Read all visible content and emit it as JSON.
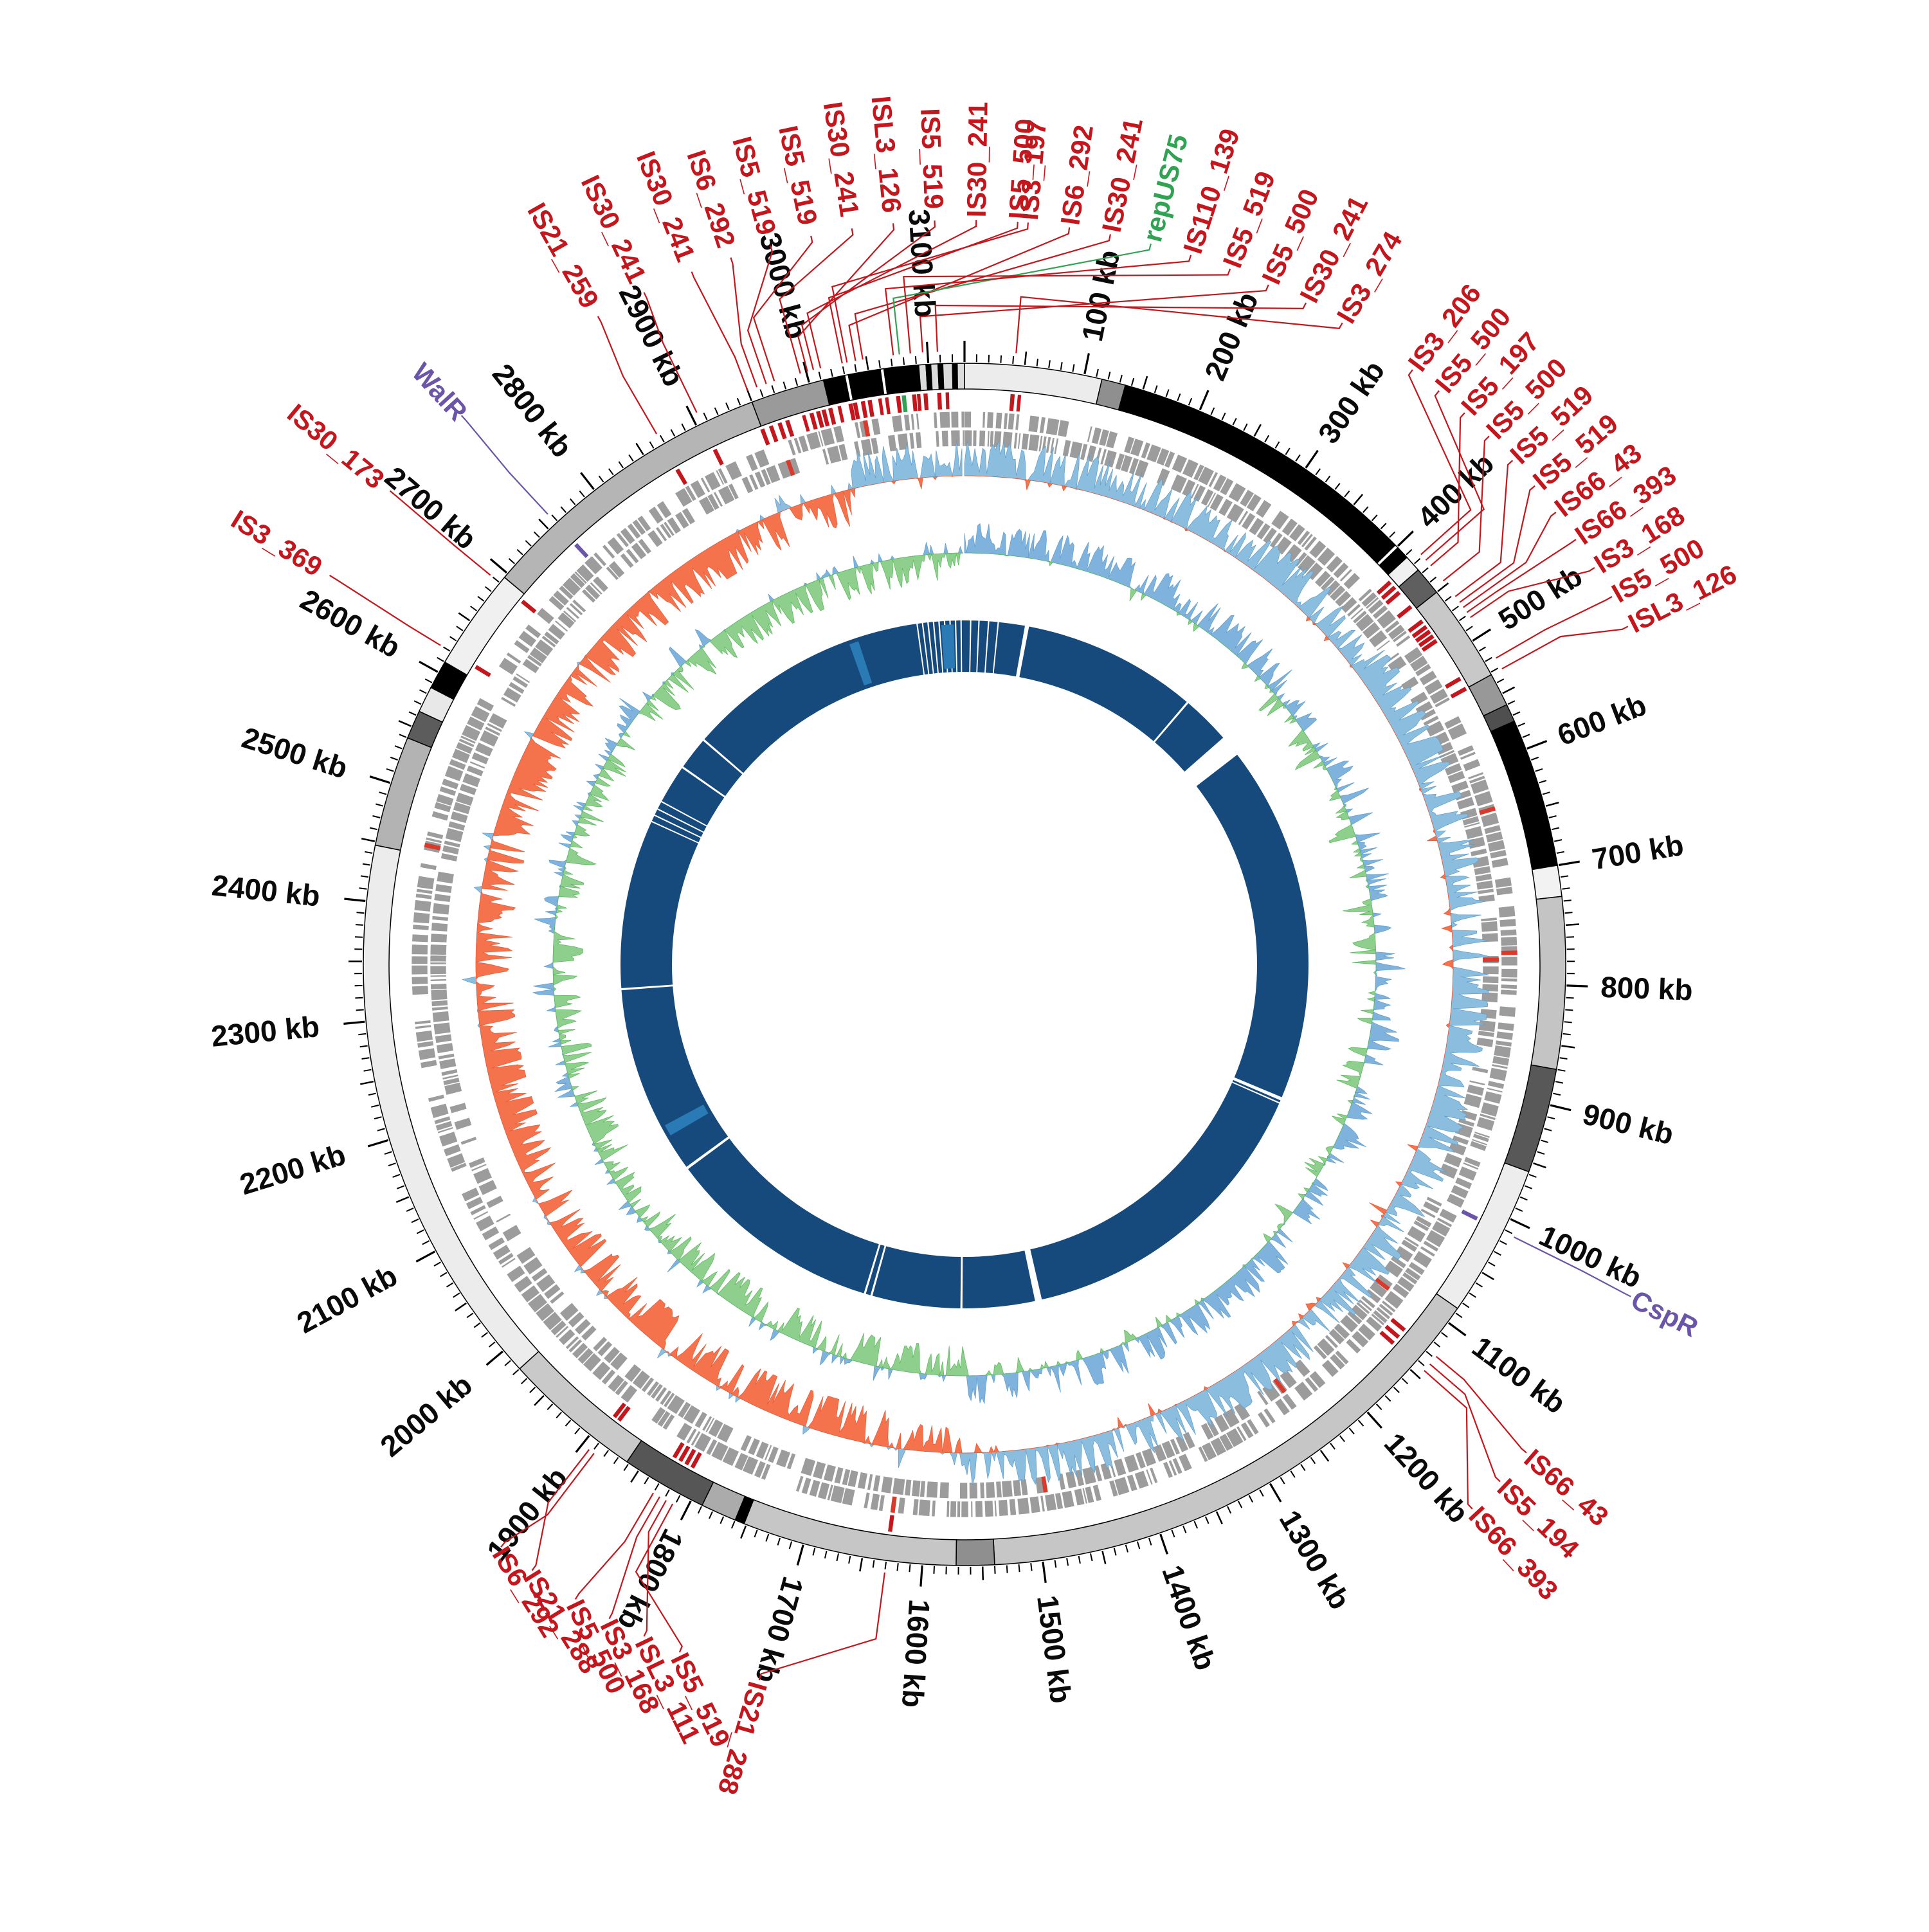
{
  "figure_title": "",
  "chart_data": {
    "type": "circular-genome-map",
    "genome_length_kb": 3130,
    "center": [
      1500,
      1500
    ],
    "scale": {
      "unit": "kb",
      "major_tick_kb": 100,
      "mid_tick_kb": 50,
      "minor_tick_kb": 10,
      "tick_labels": [
        "100 kb",
        "200 kb",
        "300 kb",
        "400 kb",
        "500 kb",
        "600 kb",
        "700 kb",
        "800 kb",
        "900 kb",
        "1000 kb",
        "1100 kb",
        "1200 kb",
        "1300 kb",
        "1400 kb",
        "1500 kb",
        "1600 kb",
        "1700 kb",
        "1800 kb",
        "1900 kb",
        "2000 kb",
        "2100 kb",
        "2200 kb",
        "2300 kb",
        "2400 kb",
        "2500 kb",
        "2600 kb",
        "2700 kb",
        "2800 kb",
        "2900 kb",
        "3000 kb",
        "3100 kb"
      ]
    },
    "colors": {
      "label_red": "#c4161d",
      "label_purple": "#6a55a8",
      "label_green": "#2fa352",
      "tick_black": "#000000",
      "gene_gray": "#9c9c9c",
      "gene_red": "#d93a2b",
      "gc_blue": "#8bbede",
      "gc_blue_edge": "#5e9dcd",
      "gc_orange": "#f4724c",
      "gc_orange_edge": "#e85934",
      "skew_blue": "#7fb3dd",
      "skew_green": "#8ecf8e",
      "skew_green_edge": "#57b757",
      "coverage_navy": "#174a7c",
      "coverage_light": "#2a7ab5"
    },
    "radii": {
      "contig_inner": 895,
      "contig_outer": 935,
      "is_tick_inner": 864,
      "is_tick_outer": 890,
      "gene_row1_inner": 835,
      "gene_row1_outer": 860,
      "gene_row2_inner": 806,
      "gene_row2_outer": 831,
      "gc_base": 760,
      "gc_amp": 56,
      "skew_base": 640,
      "skew_amp": 46,
      "coverage_inner": 455,
      "coverage_outer": 535,
      "tick_base": 937,
      "scale_label_r": 990,
      "leader_start": 954,
      "annotation_label_r": 1162
    },
    "contigs": [
      [
        0,
        115,
        "#ececec"
      ],
      [
        115,
        135,
        "#8f8f8f"
      ],
      [
        135,
        398,
        "#000000"
      ],
      [
        398,
        401,
        "#ffffff"
      ],
      [
        401,
        412,
        "#000000"
      ],
      [
        412,
        426,
        "#f0f0f0"
      ],
      [
        426,
        450,
        "#5f5f5f"
      ],
      [
        450,
        532,
        "#c8c8c8"
      ],
      [
        532,
        560,
        "#989898"
      ],
      [
        560,
        575,
        "#4f4f4f"
      ],
      [
        575,
        700,
        "#000000"
      ],
      [
        700,
        726,
        "#f2f2f2"
      ],
      [
        726,
        870,
        "#c4c4c4"
      ],
      [
        870,
        958,
        "#585858"
      ],
      [
        958,
        1086,
        "#ededed"
      ],
      [
        1086,
        1540,
        "#c6c6c6"
      ],
      [
        1540,
        1572,
        "#8f8f8f"
      ],
      [
        1572,
        1752,
        "#c6c6c6"
      ],
      [
        1752,
        1760,
        "#000000"
      ],
      [
        1760,
        1790,
        "#ababab"
      ],
      [
        1790,
        1862,
        "#565656"
      ],
      [
        1862,
        1980,
        "#c9c9c9"
      ],
      [
        1980,
        2447,
        "#ececec"
      ],
      [
        2447,
        2540,
        "#b3b3b3"
      ],
      [
        2540,
        2564,
        "#5c5c5c"
      ],
      [
        2564,
        2586,
        "#e8e8e8"
      ],
      [
        2586,
        2610,
        "#000000"
      ],
      [
        2610,
        2696,
        "#f0f0f0"
      ],
      [
        2696,
        2950,
        "#b5b5b5"
      ],
      [
        2950,
        3012,
        "#9a9a9a"
      ],
      [
        3012,
        3030,
        "#000000"
      ],
      [
        3030,
        3033,
        "#ffffff"
      ],
      [
        3033,
        3060,
        "#000000"
      ],
      [
        3060,
        3063,
        "#ffffff"
      ],
      [
        3063,
        3092,
        "#000000"
      ],
      [
        3092,
        3098,
        "#dcdcdc"
      ],
      [
        3098,
        3102,
        "#000000"
      ],
      [
        3102,
        3108,
        "#dcdcdc"
      ],
      [
        3108,
        3112,
        "#000000"
      ],
      [
        3112,
        3120,
        "#dcdcdc"
      ],
      [
        3120,
        3124,
        "#000000"
      ],
      [
        3124,
        3130,
        "#dcdcdc"
      ]
    ],
    "annotations": [
      {
        "text": "IS30_241",
        "pos": 2950,
        "la": 338.5
      },
      {
        "text": "IS6_292",
        "pos": 2958,
        "la": 341.7
      },
      {
        "text": "IS5_519",
        "pos": 2966,
        "la": 344.9
      },
      {
        "text": "IS5_519",
        "pos": 2973,
        "la": 348.1
      },
      {
        "text": "IS30_241",
        "pos": 2995,
        "la": 351.3
      },
      {
        "text": "ISL3_126",
        "pos": 3001,
        "la": 354.5
      },
      {
        "text": "IS5_519",
        "pos": 3006,
        "la": 357.7
      },
      {
        "text": "IS30_241",
        "pos": 3012,
        "la": 0.9
      },
      {
        "text": "IS5_500",
        "pos": 3030,
        "la": 4.1
      },
      {
        "text": "IS3_197",
        "pos": 3034,
        "la": 4.9
      },
      {
        "text": "IS6_292",
        "pos": 3041,
        "la": 8.1
      },
      {
        "text": "IS30_241",
        "pos": 3047,
        "la": 11.3
      },
      {
        "text": "repUS75",
        "pos": 3077,
        "la": 14.5,
        "color": "green"
      },
      {
        "text": "IS110_139",
        "pos": 3072,
        "la": 17.7
      },
      {
        "text": "IS5_519",
        "pos": 3086,
        "la": 20.9
      },
      {
        "text": "IS5_500",
        "pos": 3096,
        "la": 24.1
      },
      {
        "text": "IS30_241",
        "pos": 3108,
        "la": 27.3
      },
      {
        "text": "IS3_274",
        "pos": 42,
        "la": 30.5
      },
      {
        "text": "IS3_206",
        "pos": 418,
        "la": 37.0
      },
      {
        "text": "IS5_500",
        "pos": 424,
        "la": 39.6
      },
      {
        "text": "IS5_197",
        "pos": 430,
        "la": 42.2
      },
      {
        "text": "IS5_500",
        "pos": 446,
        "la": 44.8
      },
      {
        "text": "IS5_519",
        "pos": 462,
        "la": 47.4
      },
      {
        "text": "IS5_519",
        "pos": 468,
        "la": 50.0
      },
      {
        "text": "IS66_43",
        "pos": 473,
        "la": 52.6
      },
      {
        "text": "IS66_393",
        "pos": 478,
        "la": 55.2
      },
      {
        "text": "IS3_168",
        "pos": 483,
        "la": 57.8
      },
      {
        "text": "IS5_500",
        "pos": 522,
        "la": 60.4
      },
      {
        "text": "ISL3_126",
        "pos": 532,
        "la": 63.0
      },
      {
        "text": "CspR",
        "pos": 1012,
        "la": 116.5,
        "color": "purple"
      },
      {
        "text": "IS66_43",
        "pos": 1128,
        "la": 131.0
      },
      {
        "text": "IS5_194",
        "pos": 1136,
        "la": 134.0
      },
      {
        "text": "IS66_393",
        "pos": 1143,
        "la": 137.0
      },
      {
        "text": "IS21_288",
        "pos": 1630,
        "la": 196.0
      },
      {
        "text": "IS5_519",
        "pos": 1812,
        "la": 202.5,
        "rot": 64
      },
      {
        "text": "ISL3_111",
        "pos": 1818,
        "la": 205.5,
        "rot": 64
      },
      {
        "text": "IS3_168",
        "pos": 1824,
        "la": 208.5,
        "rot": 64
      },
      {
        "text": "IS5_500",
        "pos": 1830,
        "la": 211.5,
        "rot": 64
      },
      {
        "text": "IS21_288",
        "pos": 1893,
        "la": 215.5,
        "rot": 58
      },
      {
        "text": "IS6_292",
        "pos": 1888,
        "la": 218.5,
        "rot": 58
      },
      {
        "text": "IS3_369",
        "pos": 2620,
        "la": 301.5
      },
      {
        "text": "IS30_173",
        "pos": 2690,
        "la": 309.5
      },
      {
        "text": "WalR",
        "pos": 2758,
        "la": 317.5,
        "color": "purple"
      },
      {
        "text": "IS21_259",
        "pos": 2868,
        "la": 330.5
      },
      {
        "text": "IS30_241",
        "pos": 2905,
        "la": 334.5
      }
    ],
    "extra_is_ticks_kb": [
      2988,
      3020,
      3056,
      3062,
      3090,
      3115,
      48
    ],
    "gene_track": {
      "rows": 2,
      "seeds": [
        11,
        22
      ],
      "fill_probability": 0.82,
      "red_genes": [
        {
          "pos": 640,
          "row": 0
        },
        {
          "pos": 772,
          "row": 0
        },
        {
          "pos": 778,
          "row": 1
        },
        {
          "pos": 1108,
          "row": 1
        },
        {
          "pos": 1245,
          "row": 1
        },
        {
          "pos": 1489,
          "row": 1
        },
        {
          "pos": 1630,
          "row": 0
        },
        {
          "pos": 2456,
          "row": 0
        },
        {
          "pos": 2962,
          "row": 1
        },
        {
          "pos": 3040,
          "row": 0
        }
      ]
    },
    "gc_content": {
      "seed": 33,
      "sample_step_kb": 2.5,
      "bias_regions": [
        [
          0,
          1560,
          0.5
        ],
        [
          1560,
          1650,
          -0.15
        ],
        [
          1650,
          2930,
          -0.62
        ],
        [
          2930,
          3015,
          -0.25
        ],
        [
          3015,
          3130,
          0.45
        ]
      ],
      "positive_color_meaning": "above-average GC (blue, outward)",
      "negative_color_meaning": "below-average GC (orange, inward)"
    },
    "gc_skew": {
      "seed": 44,
      "sample_step_kb": 2.5,
      "bias_regions": [
        [
          0,
          420,
          0.45
        ],
        [
          420,
          1120,
          0.12
        ],
        [
          1120,
          1560,
          0.35
        ],
        [
          1560,
          2250,
          -0.35
        ],
        [
          2250,
          2800,
          -0.15
        ],
        [
          2800,
          3130,
          -0.4
        ]
      ],
      "positive_color_meaning": "positive skew (blue, outward)",
      "negative_color_meaning": "negative skew (green, inward)"
    },
    "coverage_ring": {
      "gaps_kb": [
        [
          8,
          10
        ],
        [
          20,
          22
        ],
        [
          34,
          36
        ],
        [
          48,
          50
        ],
        [
          88,
          94
        ],
        [
          350,
          353
        ],
        [
          424,
          456
        ],
        [
          980,
          985
        ],
        [
          988,
          990
        ],
        [
          1452,
          1462
        ],
        [
          1568,
          1571
        ],
        [
          1700,
          1703
        ],
        [
          1710,
          1713
        ],
        [
          2030,
          2034
        ],
        [
          2310,
          2313
        ],
        [
          2560,
          2562
        ],
        [
          2570,
          2572
        ],
        [
          2580,
          2582
        ],
        [
          2592,
          2594
        ],
        [
          2650,
          2653
        ],
        [
          2700,
          2703
        ],
        [
          3060,
          3062
        ],
        [
          3068,
          3070
        ],
        [
          3076,
          3078
        ],
        [
          3084,
          3086
        ],
        [
          3092,
          3094
        ],
        [
          3100,
          3102
        ],
        [
          3108,
          3110
        ],
        [
          3116,
          3118
        ],
        [
          3124,
          3126
        ]
      ],
      "light_bands_kb": [
        [
          2085,
          2102
        ],
        [
          2958,
          2972
        ],
        [
          3096,
          3114
        ]
      ]
    }
  }
}
